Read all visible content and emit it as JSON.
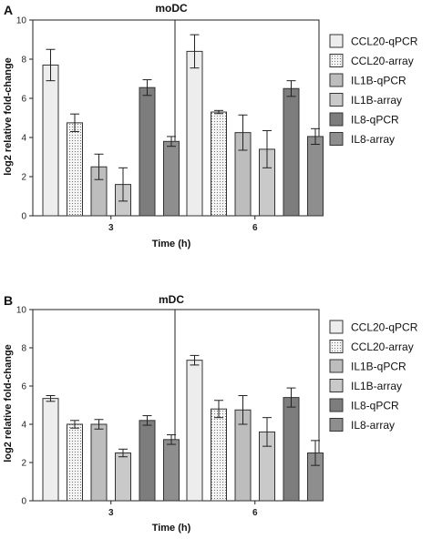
{
  "chart_data": [
    {
      "panel": "A",
      "title": "moDC",
      "type": "bar",
      "xlabel": "Time (h)",
      "ylabel": "log2 relative fold-change",
      "ylim": [
        0,
        10
      ],
      "yticks": [
        0,
        2,
        4,
        6,
        8,
        10
      ],
      "categories": [
        "3",
        "6"
      ],
      "series": [
        {
          "name": "CCL20-qPCR",
          "values": [
            7.7,
            8.4
          ],
          "errors": [
            0.8,
            0.85
          ]
        },
        {
          "name": "CCL20-array",
          "values": [
            4.75,
            5.3
          ],
          "errors": [
            0.45,
            0.08
          ]
        },
        {
          "name": "IL1B-qPCR",
          "values": [
            2.5,
            4.25
          ],
          "errors": [
            0.65,
            0.9
          ]
        },
        {
          "name": "IL1B-array",
          "values": [
            1.6,
            3.4
          ],
          "errors": [
            0.85,
            0.95
          ]
        },
        {
          "name": "IL8-qPCR",
          "values": [
            6.55,
            6.5
          ],
          "errors": [
            0.4,
            0.4
          ]
        },
        {
          "name": "IL8-array",
          "values": [
            3.8,
            4.05
          ],
          "errors": [
            0.25,
            0.4
          ]
        }
      ]
    },
    {
      "panel": "B",
      "title": "mDC",
      "type": "bar",
      "xlabel": "Time (h)",
      "ylabel": "log2 relative fold-change",
      "ylim": [
        0,
        10
      ],
      "yticks": [
        0,
        2,
        4,
        6,
        8,
        10
      ],
      "categories": [
        "3",
        "6"
      ],
      "series": [
        {
          "name": "CCL20-qPCR",
          "values": [
            5.35,
            7.35
          ],
          "errors": [
            0.15,
            0.25
          ]
        },
        {
          "name": "CCL20-array",
          "values": [
            4.0,
            4.8
          ],
          "errors": [
            0.2,
            0.45
          ]
        },
        {
          "name": "IL1B-qPCR",
          "values": [
            4.0,
            4.75
          ],
          "errors": [
            0.25,
            0.75
          ]
        },
        {
          "name": "IL1B-array",
          "values": [
            2.5,
            3.6
          ],
          "errors": [
            0.2,
            0.75
          ]
        },
        {
          "name": "IL8-qPCR",
          "values": [
            4.2,
            5.4
          ],
          "errors": [
            0.25,
            0.5
          ]
        },
        {
          "name": "IL8-array",
          "values": [
            3.2,
            2.5
          ],
          "errors": [
            0.25,
            0.65
          ]
        }
      ]
    }
  ],
  "series_styles": [
    {
      "fill": "#ededed",
      "pattern": "none"
    },
    {
      "fill": "#f4f4f4",
      "pattern": "dots"
    },
    {
      "fill": "#bdbdbd",
      "pattern": "none"
    },
    {
      "fill": "#c9c9c9",
      "pattern": "none"
    },
    {
      "fill": "#7d7d7d",
      "pattern": "none"
    },
    {
      "fill": "#8e8e8e",
      "pattern": "none"
    }
  ]
}
